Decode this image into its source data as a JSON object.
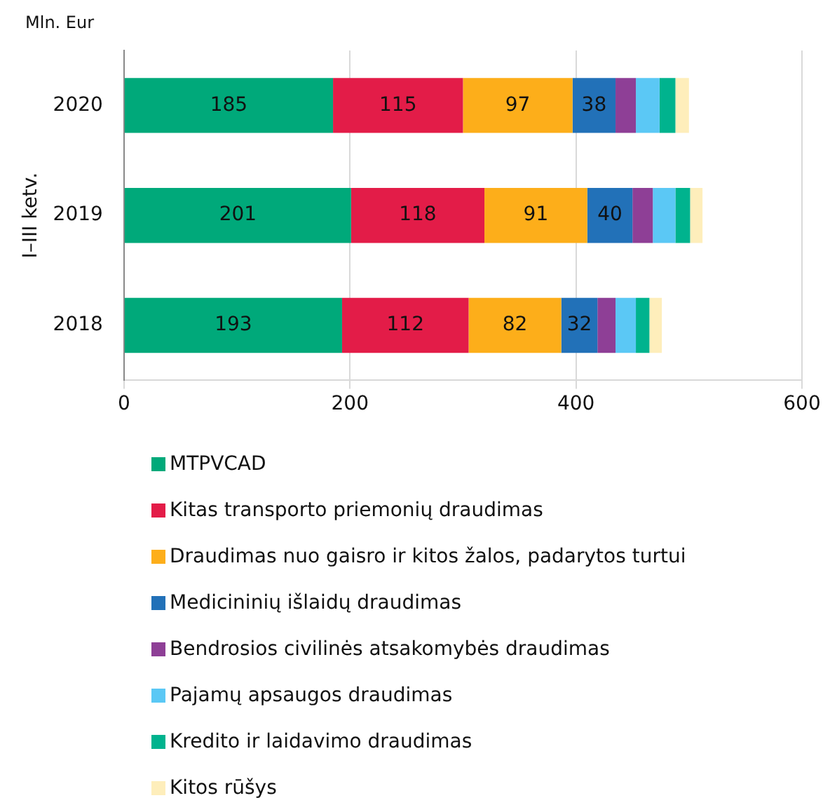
{
  "chart_data": {
    "type": "bar",
    "orientation": "horizontal",
    "stacked": true,
    "ylabel": "I–III ketv.",
    "annotations": [
      "Mln. Eur"
    ],
    "categories": [
      "2020",
      "2019",
      "2018"
    ],
    "xlim": [
      0,
      600
    ],
    "xticks": [
      0,
      200,
      400,
      600
    ],
    "grid": "x",
    "legend": "bottom",
    "series": [
      {
        "name": "MTPVCAD",
        "color": "#00a97a",
        "values": [
          185,
          201,
          193
        ],
        "value_labels": [
          "185",
          "201",
          "193"
        ]
      },
      {
        "name": "Kitas transporto priemonių draudimas",
        "color": "#e31c48",
        "values": [
          115,
          118,
          112
        ],
        "value_labels": [
          "115",
          "118",
          "112"
        ]
      },
      {
        "name": "Draudimas nuo gaisro ir kitos žalos, padarytos turtui",
        "color": "#fdae1a",
        "values": [
          97,
          91,
          82
        ],
        "value_labels": [
          "97",
          "91",
          "82"
        ]
      },
      {
        "name": "Medicininių išlaidų draudimas",
        "color": "#2271b8",
        "values": [
          38,
          40,
          32
        ],
        "value_labels": [
          "38",
          "40",
          "32"
        ]
      },
      {
        "name": "Bendrosios civilinės atsakomybės draudimas",
        "color": "#8e3f96",
        "values": [
          18,
          18,
          16
        ]
      },
      {
        "name": "Pajamų apsaugos draudimas",
        "color": "#5bc8f5",
        "values": [
          21,
          20,
          18
        ]
      },
      {
        "name": "Kredito ir laidavimo draudimas",
        "color": "#00b38e",
        "values": [
          14,
          13,
          12
        ]
      },
      {
        "name": "Kitos rūšys",
        "color": "#feeebb",
        "values": [
          12,
          11,
          11
        ]
      }
    ]
  }
}
